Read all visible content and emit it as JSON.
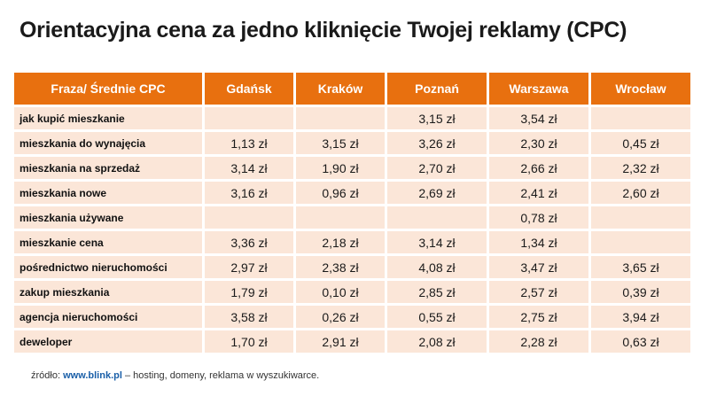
{
  "colors": {
    "header": "#e8700f",
    "cell": "#fbe6d8",
    "link": "#1a5fa8"
  },
  "chart_data": {
    "type": "table",
    "title": "Orientacyjna  cena za jedno kliknięcie Twojej reklamy (CPC)",
    "columns": [
      "Fraza/ Średnie CPC",
      "Gdańsk",
      "Kraków",
      "Poznań",
      "Warszawa",
      "Wrocław"
    ],
    "rows": [
      [
        "jak kupić mieszkanie",
        "",
        "",
        "3,15 zł",
        "3,54 zł",
        ""
      ],
      [
        "mieszkania do wynajęcia",
        "1,13 zł",
        "3,15 zł",
        "3,26 zł",
        "2,30 zł",
        "0,45 zł"
      ],
      [
        "mieszkania na sprzedaż",
        "3,14 zł",
        "1,90 zł",
        "2,70 zł",
        "2,66 zł",
        "2,32 zł"
      ],
      [
        "mieszkania nowe",
        "3,16 zł",
        "0,96 zł",
        "2,69 zł",
        "2,41 zł",
        "2,60 zł"
      ],
      [
        "mieszkania używane",
        "",
        "",
        "",
        "0,78 zł",
        ""
      ],
      [
        "mieszkanie cena",
        "3,36 zł",
        "2,18 zł",
        "3,14 zł",
        "1,34 zł",
        ""
      ],
      [
        "pośrednictwo nieruchomości",
        "2,97 zł",
        "2,38 zł",
        "4,08 zł",
        "3,47 zł",
        "3,65 zł"
      ],
      [
        "zakup mieszkania",
        "1,79 zł",
        "0,10 zł",
        "2,85 zł",
        "2,57 zł",
        "0,39 zł"
      ],
      [
        "agencja  nieruchomości",
        "3,58 zł",
        "0,26 zł",
        "0,55 zł",
        "2,75 zł",
        "3,94 zł"
      ],
      [
        "deweloper",
        "1,70 zł",
        "2,91 zł",
        "2,08 zł",
        "2,28 zł",
        "0,63 zł"
      ]
    ]
  },
  "source": {
    "prefix": "źródło: ",
    "link": "www.blink.pl",
    "suffix": " – hosting, domeny, reklama w wyszukiwarce."
  }
}
